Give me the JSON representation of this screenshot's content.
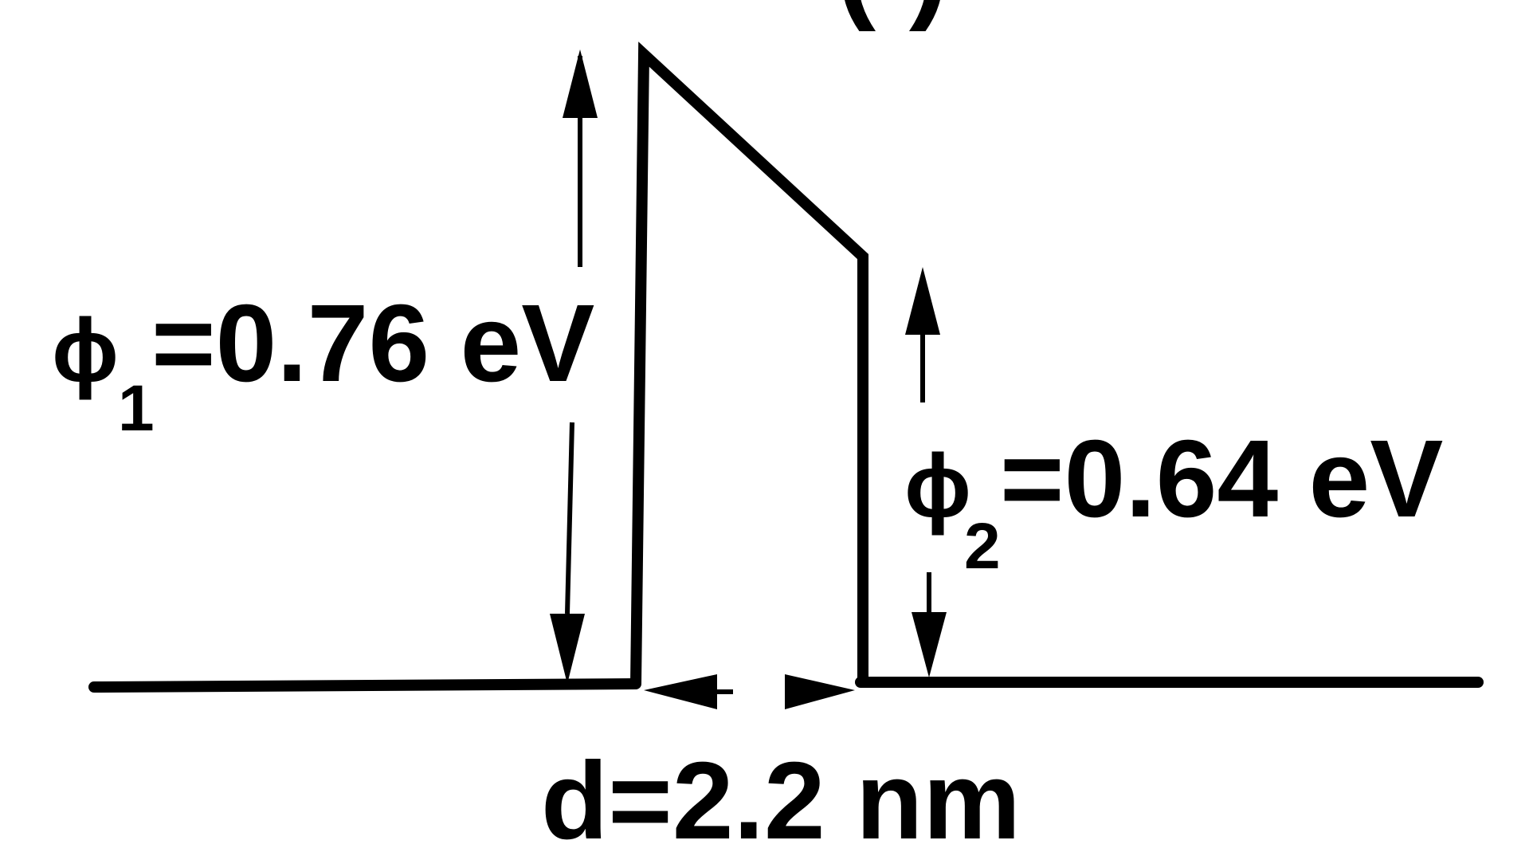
{
  "diagram": {
    "top_partial_label": "(  )",
    "phi1": {
      "symbol": "ϕ",
      "subscript": "1",
      "value": "=0.76 eV"
    },
    "phi2": {
      "symbol": "ϕ",
      "subscript": "2",
      "value": "=0.64 eV"
    },
    "thickness": "d=2.2 nm"
  },
  "colors": {
    "line": "#000000",
    "background": "#ffffff"
  }
}
